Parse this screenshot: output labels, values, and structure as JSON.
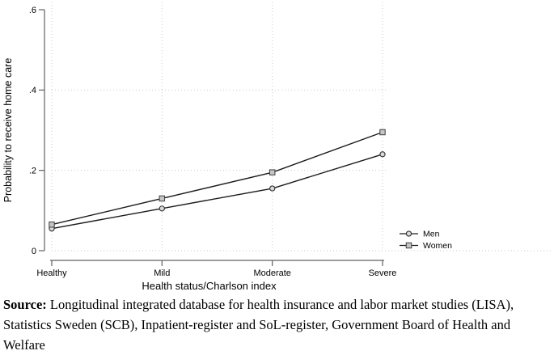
{
  "chart_data": {
    "type": "line",
    "categories": [
      "Healthy",
      "Mild",
      "Moderate",
      "Severe"
    ],
    "series": [
      {
        "name": "Men",
        "marker": "circle",
        "values": [
          0.055,
          0.105,
          0.155,
          0.24
        ]
      },
      {
        "name": "Women",
        "marker": "square",
        "values": [
          0.065,
          0.13,
          0.195,
          0.295
        ]
      }
    ],
    "xlabel": "Health status/Charlson index",
    "ylabel": "Probability to receive home care",
    "ylim": [
      0,
      0.6
    ],
    "yticks": [
      {
        "v": 0.0,
        "label": "0"
      },
      {
        "v": 0.2,
        "label": ".2"
      },
      {
        "v": 0.4,
        "label": ".4"
      },
      {
        "v": 0.6,
        "label": ".6"
      }
    ],
    "grid": "dotted",
    "legend_position": "inside-right-bottom",
    "colors": {
      "line": "#1a1a1a",
      "grid": "#c9c9c9",
      "axis": "#606060",
      "circle_fill": "#d9d9d9",
      "circle_stroke": "#303030",
      "square_fill": "#c6c6c6",
      "square_stroke": "#4a4a4a"
    }
  },
  "source": {
    "label": "Source:",
    "line1": "Longitudinal integrated database for health insurance and labor market studies (LISA),",
    "line2": "Statistics Sweden (SCB), Inpatient-register and SoL-register, Government Board of Health and",
    "line3": "Welfare"
  }
}
